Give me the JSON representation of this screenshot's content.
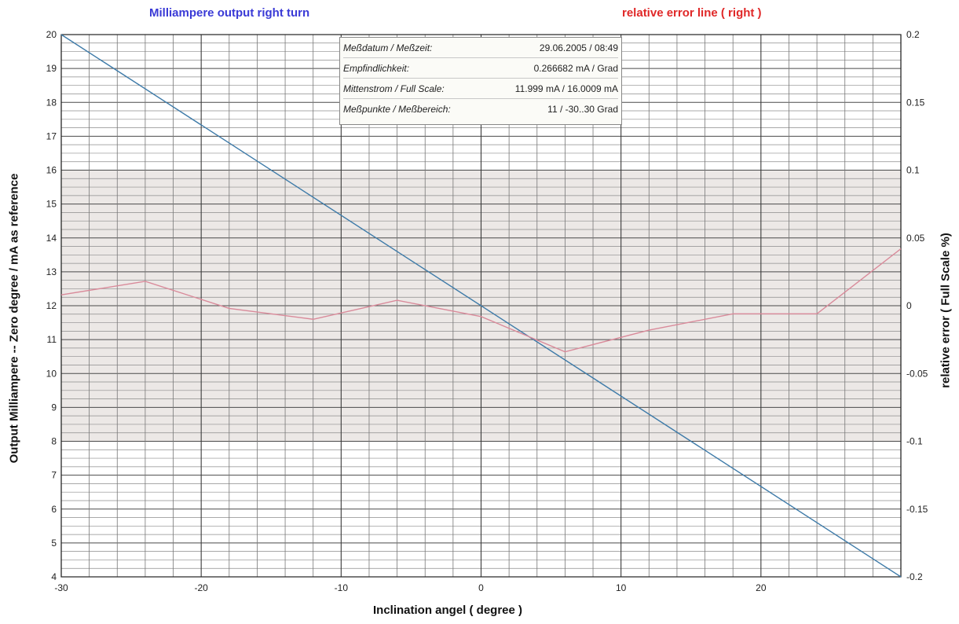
{
  "title_left": "Milliampere output right turn",
  "title_right": "relative error line ( right )",
  "info_box": [
    {
      "key": "Meßdatum / Meßzeit:",
      "value": "29.06.2005 / 08:49"
    },
    {
      "key": "Empfindlichkeit:",
      "value": "0.266682 mA / Grad"
    },
    {
      "key": "Mittenstrom / Full Scale:",
      "value": "11.999 mA / 16.0009 mA"
    },
    {
      "key": "Meßpunkte / Meßbereich:",
      "value": "11 / -30..30 Grad"
    }
  ],
  "chart_data": {
    "type": "line",
    "xlabel": "Inclination angel ( degree )",
    "ylabel": "Output Milliampere -- Zero degree / mA as reference",
    "y2label": "relative error ( Full Scale %)",
    "xlim": [
      -30,
      30
    ],
    "ylim": [
      4,
      20
    ],
    "y2lim": [
      -0.2,
      0.2
    ],
    "x_ticks": [
      -30,
      -20,
      -10,
      0,
      10,
      20
    ],
    "y_ticks": [
      4,
      5,
      6,
      7,
      8,
      9,
      10,
      11,
      12,
      13,
      14,
      15,
      16,
      17,
      18,
      19,
      20
    ],
    "y2_ticks": [
      "-0.2",
      "-0.15",
      "-0.1",
      "-0.05",
      "0",
      "0.05",
      "0.1",
      "0.15",
      "0.2"
    ],
    "shaded_band_y": [
      8,
      16
    ],
    "series": [
      {
        "name": "Milliampere output right turn",
        "axis": "left",
        "color": "#3d7aa8",
        "x": [
          -30,
          30
        ],
        "y": [
          20.0,
          4.0
        ]
      },
      {
        "name": "relative error line ( right )",
        "axis": "right",
        "color": "#d98a9a",
        "x": [
          -30,
          -24,
          -18,
          -12,
          -6,
          0,
          6,
          12,
          18,
          24,
          30
        ],
        "y": [
          0.008,
          0.018,
          -0.002,
          -0.01,
          0.004,
          -0.008,
          -0.034,
          -0.018,
          -0.006,
          -0.006,
          0.042
        ]
      }
    ]
  }
}
